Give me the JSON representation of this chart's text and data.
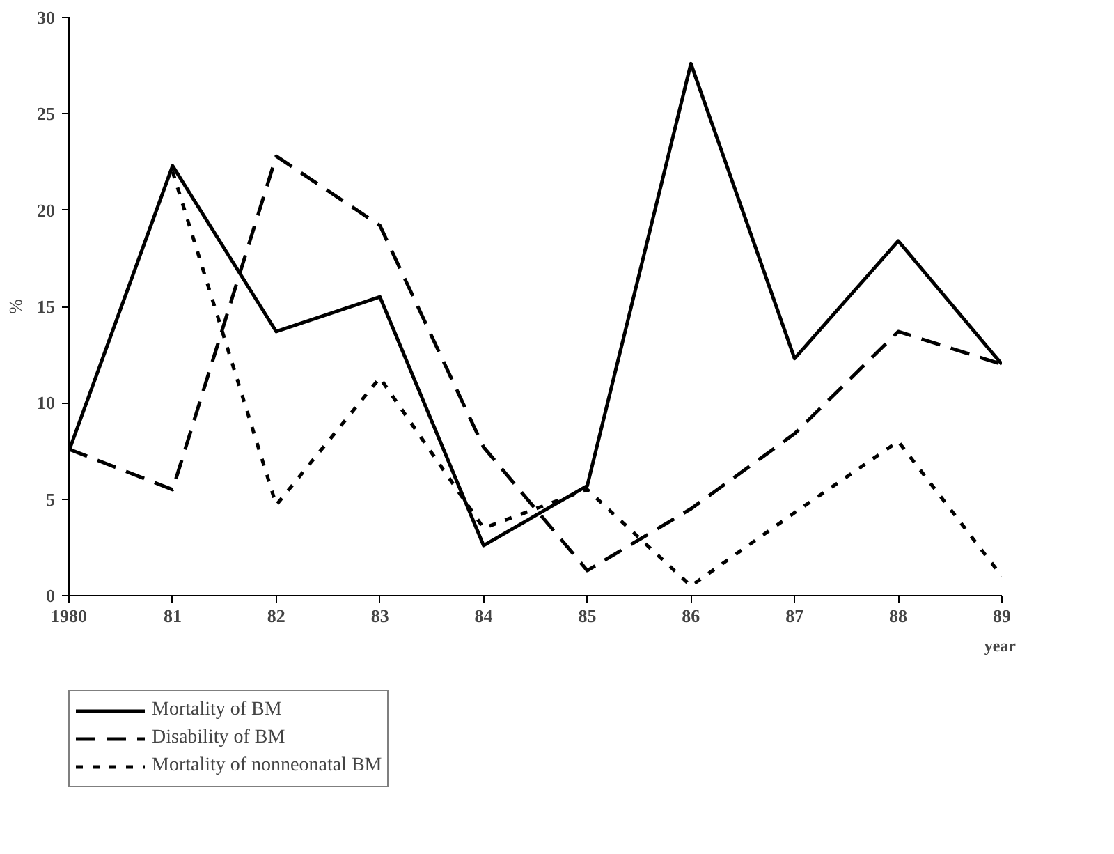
{
  "chart_data": {
    "type": "line",
    "ylabel": "%",
    "xlabel": "year",
    "x": [
      1980,
      1981,
      1982,
      1983,
      1984,
      1985,
      1986,
      1987,
      1988,
      1989
    ],
    "xlim": [
      1980,
      1989
    ],
    "xticks": [
      {
        "value": 1980,
        "label": "1980"
      },
      {
        "value": 1981,
        "label": "81"
      },
      {
        "value": 1982,
        "label": "82"
      },
      {
        "value": 1983,
        "label": "83"
      },
      {
        "value": 1984,
        "label": "84"
      },
      {
        "value": 1985,
        "label": "85"
      },
      {
        "value": 1986,
        "label": "86"
      },
      {
        "value": 1987,
        "label": "87"
      },
      {
        "value": 1988,
        "label": "88"
      },
      {
        "value": 1989,
        "label": "89"
      }
    ],
    "ylim": [
      0,
      30
    ],
    "yticks": [
      0,
      5,
      10,
      15,
      20,
      25,
      30
    ],
    "grid": false,
    "legend": "bottom left",
    "marker": "none",
    "series": [
      {
        "name": "Mortality of BM",
        "color": "#000000",
        "line_style": "solid",
        "values": [
          7.5,
          22.3,
          13.7,
          15.5,
          2.6,
          5.7,
          27.6,
          12.3,
          18.4,
          12.0
        ]
      },
      {
        "name": "Disability of BM",
        "color": "#000000",
        "line_style": "dashed",
        "values": [
          7.6,
          5.5,
          22.8,
          19.2,
          7.7,
          1.3,
          4.5,
          8.4,
          13.7,
          12.0
        ]
      },
      {
        "name": "Mortality of nonneonatal BM",
        "color": "#000000",
        "line_style": "dotted",
        "values": [
          null,
          22.0,
          4.7,
          11.3,
          3.5,
          5.5,
          0.5,
          4.3,
          8.0,
          1.0
        ]
      }
    ]
  }
}
